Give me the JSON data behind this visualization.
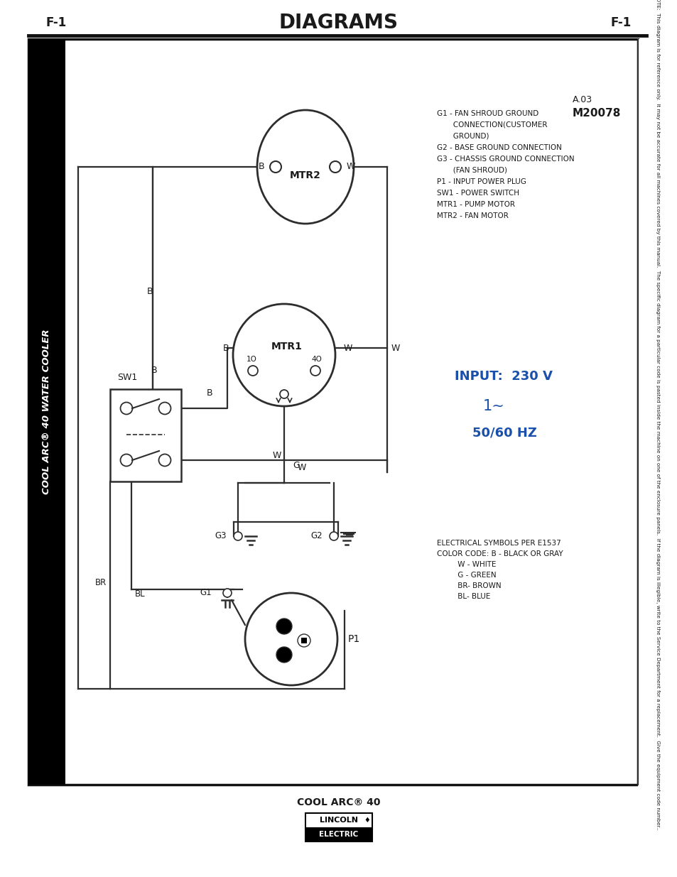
{
  "title": "DIAGRAMS",
  "page_label": "F-1",
  "product_name": "COOL ARC® 40",
  "sidebar_text": "COOL ARC® 40 WATER COOLER",
  "legend_items": [
    "ELECTRICAL SYMBOLS PER E1537",
    "COLOR CODE: B - BLACK OR GRAY",
    "         W - WHITE",
    "         G - GREEN",
    "         BR- BROWN",
    "         BL- BLUE"
  ],
  "legend2_items": [
    "G1 - FAN SHROUD GROUND",
    "       CONNECTION(CUSTOMER",
    "       GROUND)",
    "G2 - BASE GROUND CONNECTION",
    "G3 - CHASSIS GROUND CONNECTION",
    "       (FAN SHROUD)",
    "P1 - INPUT POWER PLUG",
    "SW1 - POWER SWITCH",
    "MTR1 - PUMP MOTOR",
    "MTR2 - FAN MOTOR"
  ],
  "note_text": "NOTE:  This diagram is for reference only.  It may not be accurate for all machines covered by this manual.  The specific diagram for a particular code is pasted inside the machine on one of the enclosure panels.  If the diagram is illegible, write to the Service Department for a replacement.  Give the equipment code number..",
  "code_label": "M20078",
  "version_label": "A.03",
  "bg_color": "#ffffff",
  "line_color": "#2d2d2d",
  "text_color": "#1a1a1a",
  "blue_color": "#1a4faa"
}
